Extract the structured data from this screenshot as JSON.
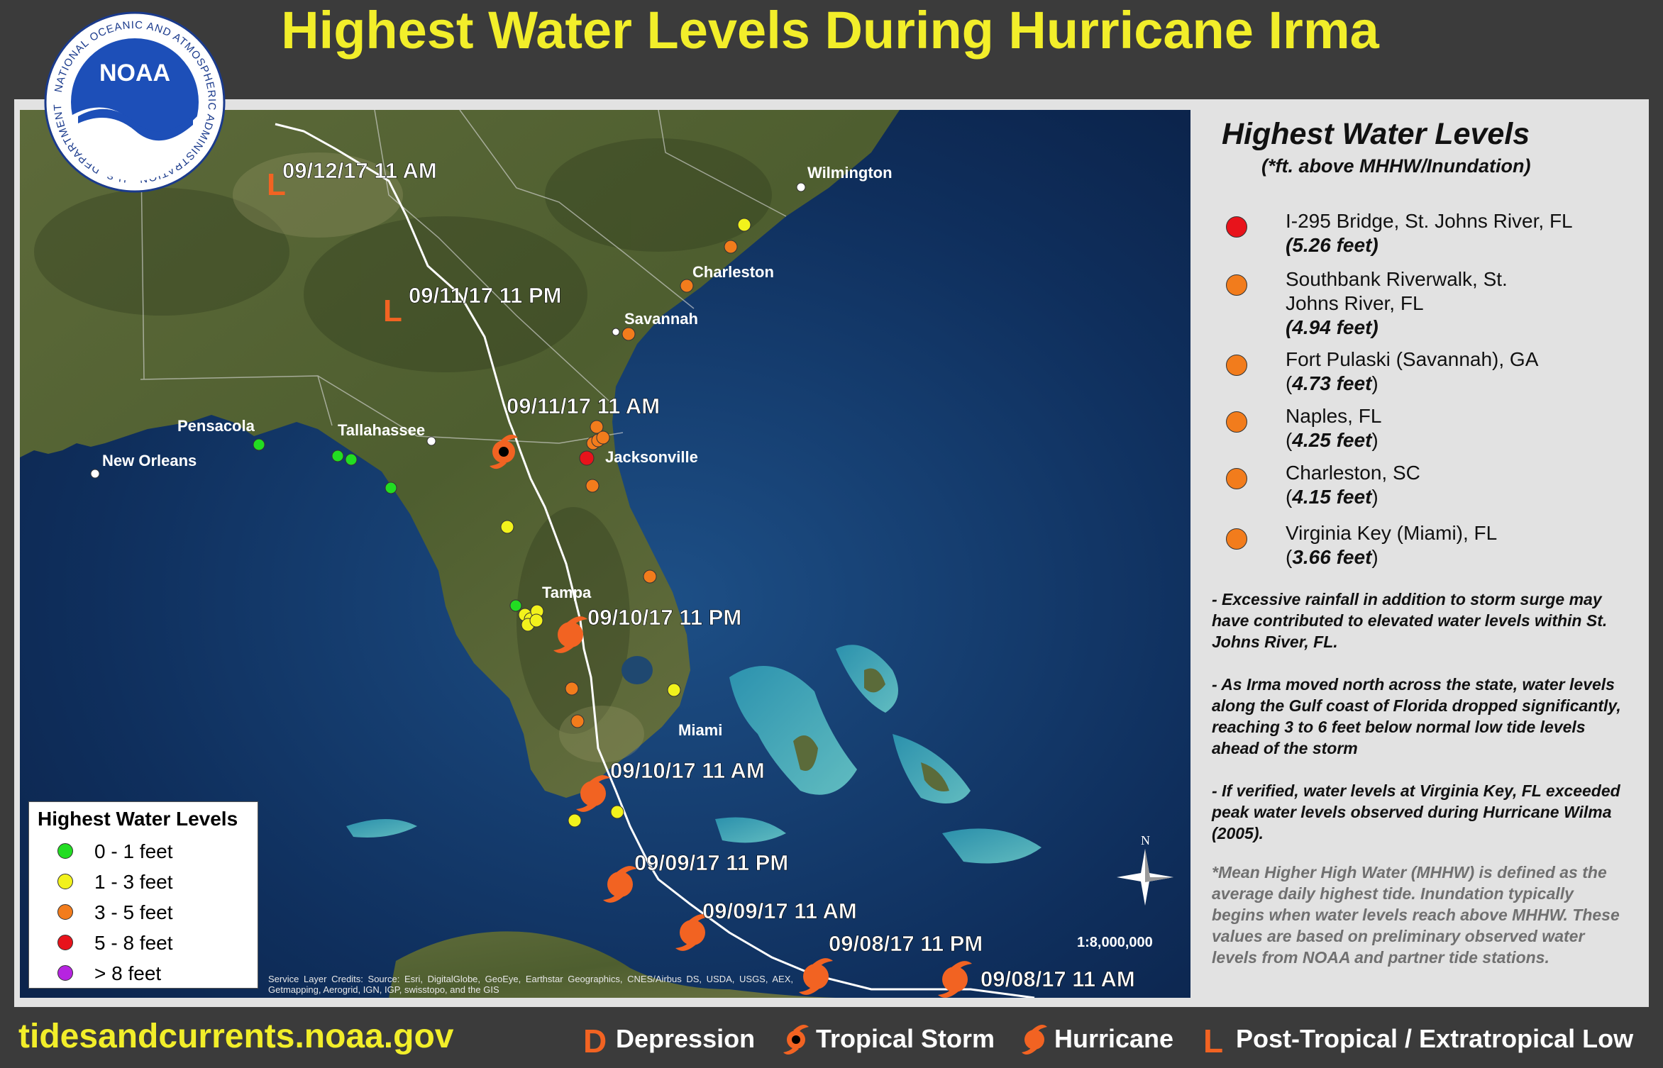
{
  "title": "Highest Water Levels During Hurricane Irma",
  "logo": {
    "name": "NOAA",
    "ring_text": "NATIONAL OCEANIC AND ATMOSPHERIC ADMINISTRATION · U.S. DEPARTMENT OF COMMERCE"
  },
  "colors": {
    "title": "#f2ee2a",
    "green": "#22dd22",
    "yellow": "#f2f21c",
    "orange": "#f27c1c",
    "red": "#e8131b",
    "purple": "#b624e0",
    "hurricane": "#f26322",
    "track": "#ffffff"
  },
  "sidebar": {
    "title": "Highest Water Levels",
    "subtitle": "(*ft. above MHHW/Inundation)",
    "stations": [
      {
        "name": "I-295 Bridge, St. Johns River, FL",
        "value": "(5.26 feet)",
        "level": "red"
      },
      {
        "name": "Southbank Riverwalk, St. Johns River, FL",
        "value": "(4.94 feet)",
        "level": "orange"
      },
      {
        "name": "Fort Pulaski (Savannah), GA",
        "value_open": "(",
        "value": "4.73 feet",
        "value_close": ")",
        "level": "orange"
      },
      {
        "name": "Naples, FL",
        "value_open": "(",
        "value": "4.25 feet",
        "value_close": ")",
        "level": "orange"
      },
      {
        "name": "Charleston, SC",
        "value_open": "(",
        "value": "4.15 feet",
        "value_close": ")",
        "level": "orange"
      },
      {
        "name": "Virginia Key (Miami), FL",
        "value_open": "(",
        "value": "3.66 feet",
        "value_close": ")",
        "level": "orange"
      }
    ],
    "notes": [
      "- Excessive rainfall in addition to storm surge may have contributed to elevated water levels within St. Johns River, FL.",
      "- As Irma moved north across the state, water levels along the Gulf coast of Florida dropped significantly, reaching 3 to 6 feet below normal low tide levels ahead of the storm",
      "- If verified, water levels at Virginia Key, FL exceeded peak water levels observed during Hurricane Wilma (2005)."
    ],
    "definition": "*Mean Higher High Water (MHHW) is defined as the average daily highest tide. Inundation typically begins when water levels reach above MHHW. These values are based on preliminary observed water levels from NOAA and partner tide stations."
  },
  "legend": {
    "title": "Highest Water Levels",
    "rows": [
      {
        "label": "0 - 1 feet",
        "color": "#22dd22"
      },
      {
        "label": "1 - 3 feet",
        "color": "#f2f21c"
      },
      {
        "label": "3 - 5 feet",
        "color": "#f27c1c"
      },
      {
        "label": "5 - 8 feet",
        "color": "#e8131b"
      },
      {
        "label": "> 8 feet",
        "color": "#b624e0"
      }
    ]
  },
  "map": {
    "cities": [
      "Wilmington",
      "Charleston",
      "Savannah",
      "Jacksonville",
      "Tallahassee",
      "Pensacola",
      "New Orleans",
      "Tampa",
      "Miami"
    ],
    "track_labels": [
      "09/12/17 11 AM",
      "09/11/17 11 PM",
      "09/11/17 11 AM",
      "09/10/17 11 PM",
      "09/10/17 11 AM",
      "09/09/17 11 PM",
      "09/09/17 11 AM",
      "09/08/17 11 PM",
      "09/08/17 11 AM"
    ],
    "scale": "1:8,000,000",
    "north": "N",
    "credits": "Service Layer Credits: Source: Esri, DigitalGlobe, GeoEye, Earthstar Geographics, CNES/Airbus DS, USDA, USGS, AEX, Getmapping, Aerogrid, IGN, IGP, swisstopo, and the GIS"
  },
  "footer": {
    "url": "tidesandcurrents.noaa.gov",
    "key": [
      {
        "symbol": "D",
        "label": "Depression"
      },
      {
        "symbol": "tropical-storm",
        "label": "Tropical Storm"
      },
      {
        "symbol": "hurricane",
        "label": "Hurricane"
      },
      {
        "symbol": "L",
        "label": "Post-Tropical / Extratropical Low"
      }
    ]
  }
}
